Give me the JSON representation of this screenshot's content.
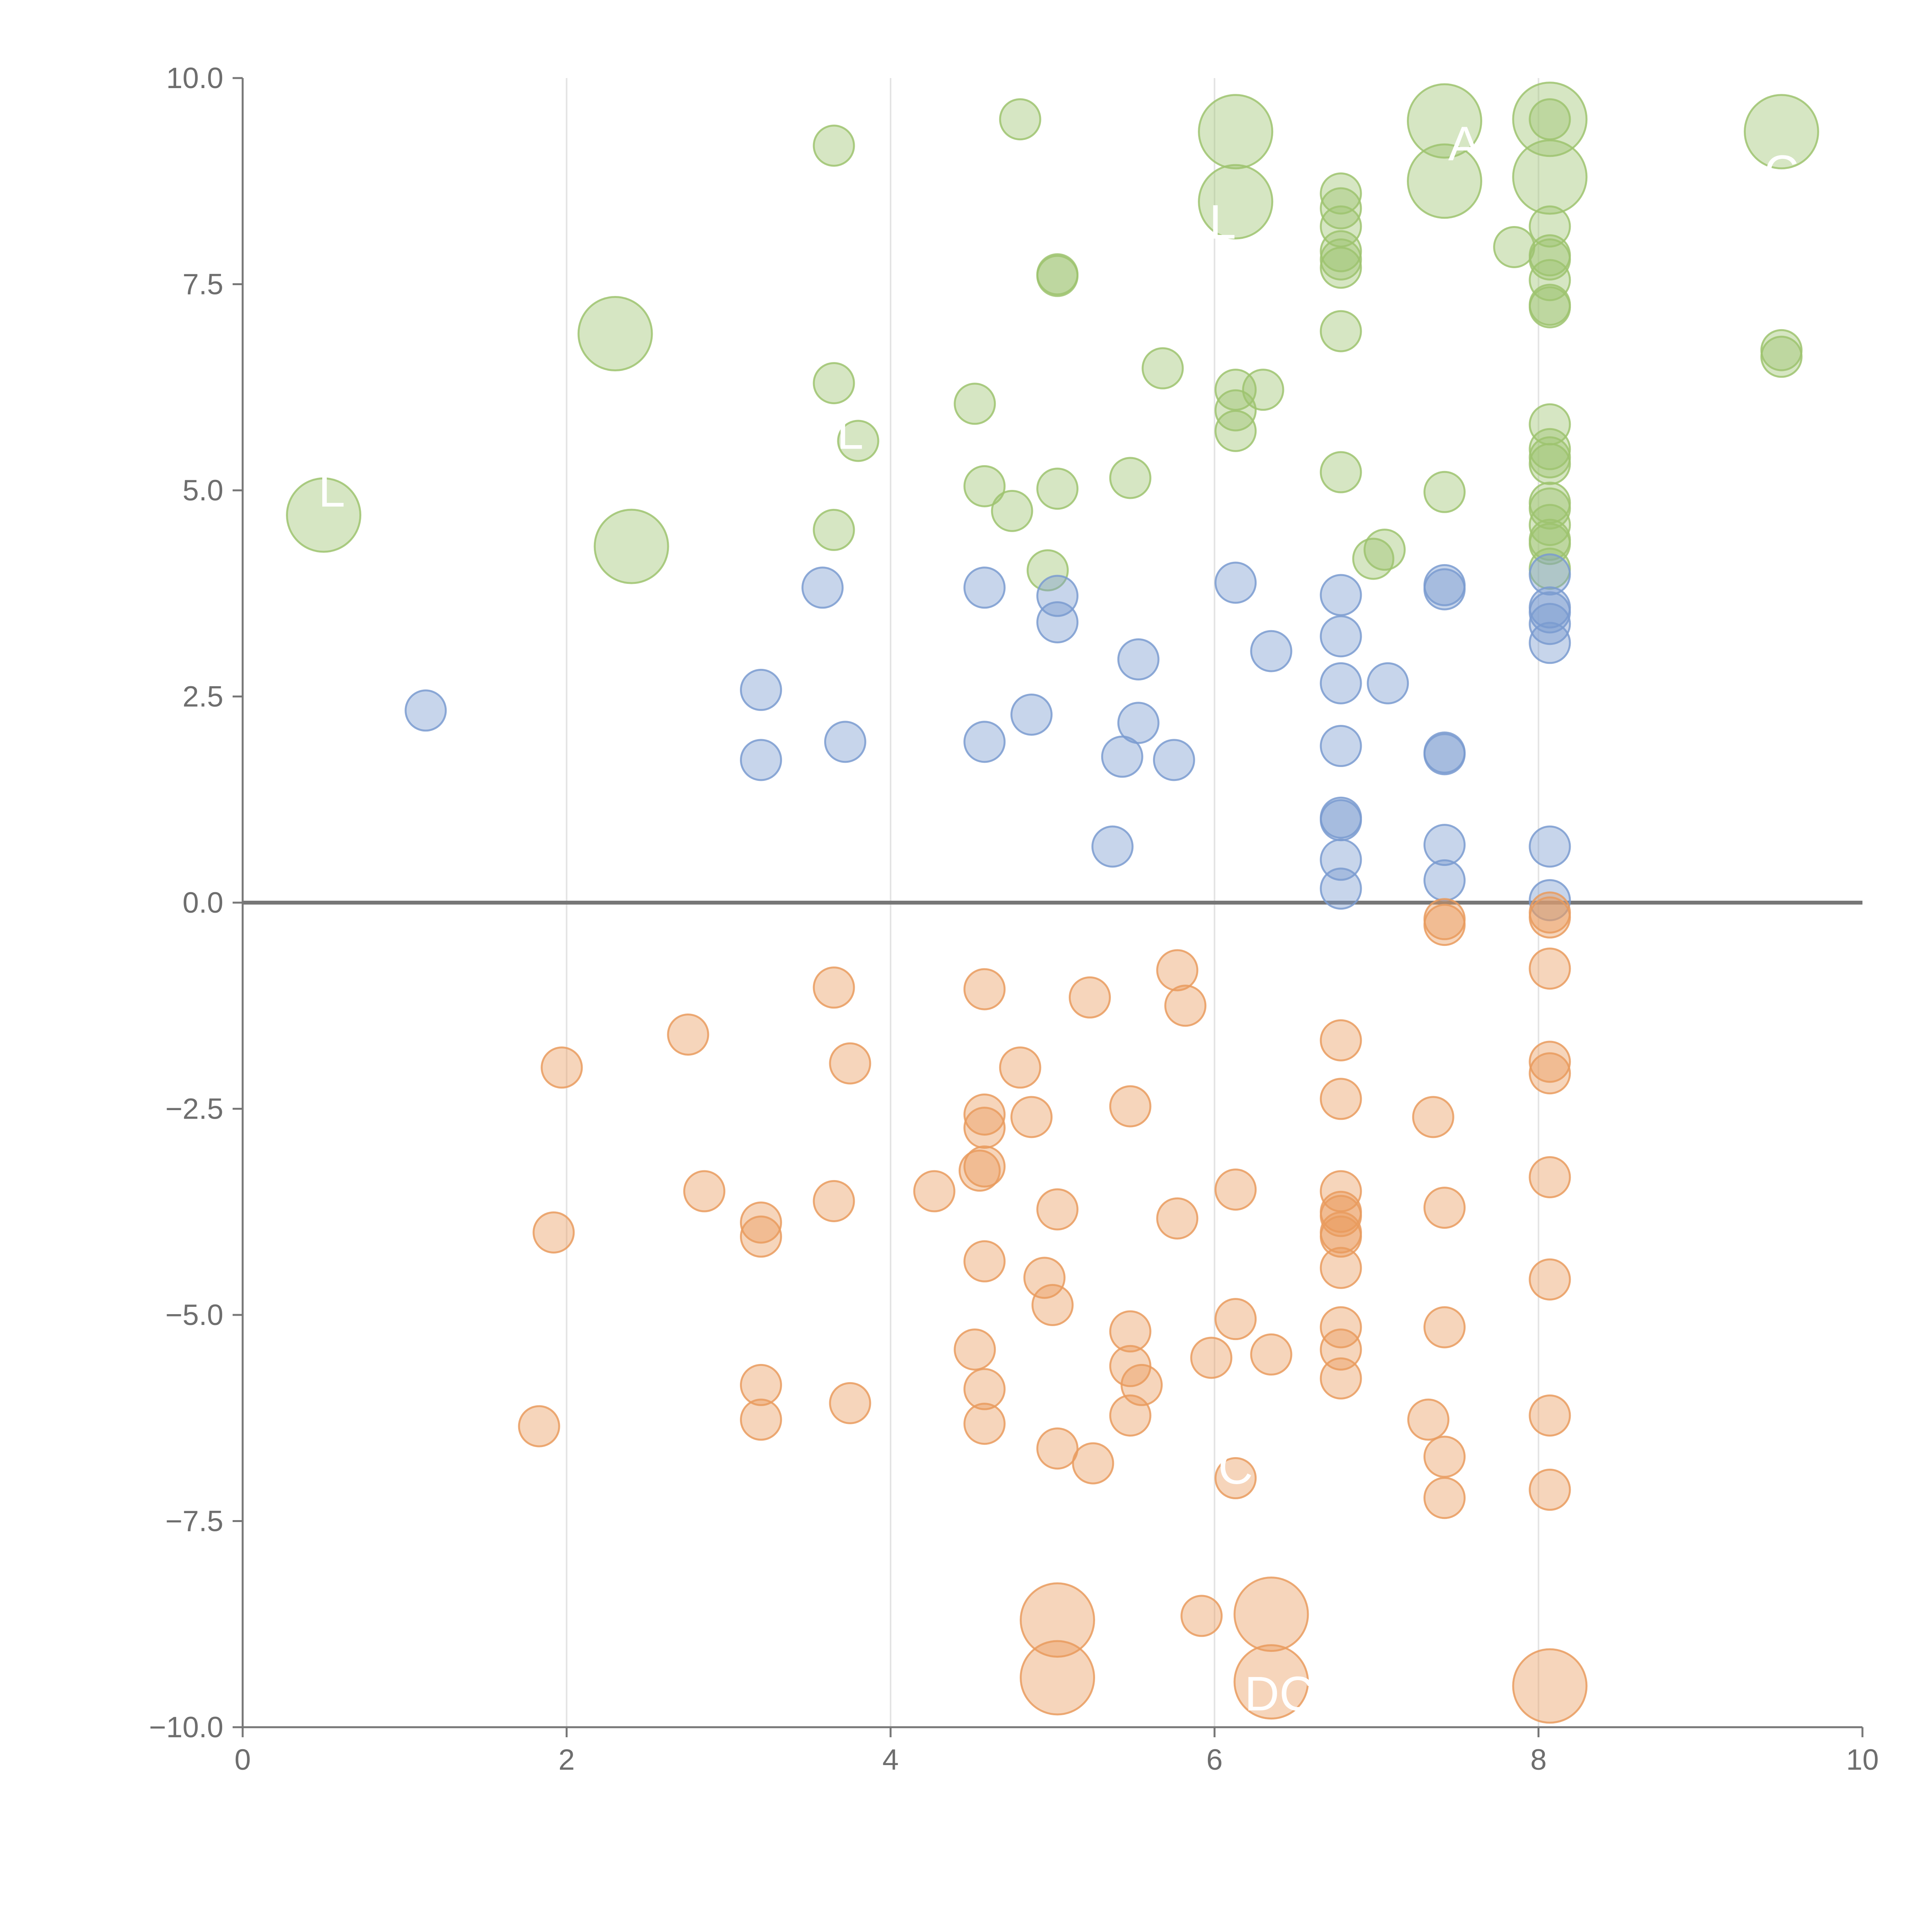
{
  "chart_data": {
    "type": "scatter",
    "title": "",
    "xlabel": "",
    "ylabel": "",
    "xlim": [
      0,
      10
    ],
    "ylim": [
      -10,
      10
    ],
    "x_ticks": [
      "0",
      "2",
      "4",
      "6",
      "8",
      "10"
    ],
    "y_ticks": [
      "−10.0",
      "−7.5",
      "−5.0",
      "−2.5",
      "0.0",
      "2.5",
      "5.0",
      "7.5",
      "10.0"
    ],
    "grid": "vertical",
    "reference_line_y": 0,
    "colors": {
      "green": "#9dc36f",
      "blue": "#7a9bd0",
      "orange": "#e99b5e",
      "axis": "#777777",
      "grid": "#e3e3e3"
    },
    "series": [
      {
        "name": "green",
        "color": "#9dc36f",
        "points": [
          {
            "x": 3.65,
            "y": 9.18,
            "s": 1
          },
          {
            "x": 4.8,
            "y": 9.5,
            "s": 1
          },
          {
            "x": 6.13,
            "y": 9.35,
            "s": 2
          },
          {
            "x": 6.13,
            "y": 8.5,
            "s": 2
          },
          {
            "x": 7.42,
            "y": 9.48,
            "s": 2
          },
          {
            "x": 7.42,
            "y": 8.75,
            "s": 2
          },
          {
            "x": 8.07,
            "y": 9.5,
            "s": 2
          },
          {
            "x": 8.07,
            "y": 8.8,
            "s": 2
          },
          {
            "x": 9.5,
            "y": 9.35,
            "s": 2
          },
          {
            "x": 8.07,
            "y": 9.5,
            "s": 1
          },
          {
            "x": 6.78,
            "y": 8.6,
            "s": 1
          },
          {
            "x": 6.78,
            "y": 8.42,
            "s": 1
          },
          {
            "x": 6.78,
            "y": 8.2,
            "s": 1
          },
          {
            "x": 6.78,
            "y": 7.9,
            "s": 1
          },
          {
            "x": 6.78,
            "y": 7.8,
            "s": 1
          },
          {
            "x": 6.78,
            "y": 7.7,
            "s": 1
          },
          {
            "x": 7.85,
            "y": 7.95,
            "s": 1
          },
          {
            "x": 8.07,
            "y": 8.2,
            "s": 1
          },
          {
            "x": 8.07,
            "y": 7.85,
            "s": 1
          },
          {
            "x": 8.07,
            "y": 7.8,
            "s": 1
          },
          {
            "x": 8.07,
            "y": 7.55,
            "s": 1
          },
          {
            "x": 8.07,
            "y": 7.25,
            "s": 1
          },
          {
            "x": 8.07,
            "y": 7.22,
            "s": 1
          },
          {
            "x": 5.03,
            "y": 7.62,
            "s": 1
          },
          {
            "x": 5.03,
            "y": 7.6,
            "s": 1
          },
          {
            "x": 2.3,
            "y": 6.9,
            "s": 2
          },
          {
            "x": 6.78,
            "y": 6.93,
            "s": 1
          },
          {
            "x": 9.5,
            "y": 6.7,
            "s": 1
          },
          {
            "x": 9.5,
            "y": 6.62,
            "s": 1
          },
          {
            "x": 3.65,
            "y": 6.3,
            "s": 1
          },
          {
            "x": 5.68,
            "y": 6.48,
            "s": 1
          },
          {
            "x": 4.52,
            "y": 6.05,
            "s": 1
          },
          {
            "x": 6.13,
            "y": 6.22,
            "s": 1
          },
          {
            "x": 6.3,
            "y": 6.22,
            "s": 1
          },
          {
            "x": 6.13,
            "y": 5.97,
            "s": 1
          },
          {
            "x": 6.13,
            "y": 5.72,
            "s": 1
          },
          {
            "x": 3.8,
            "y": 5.6,
            "s": 1
          },
          {
            "x": 8.07,
            "y": 5.8,
            "s": 1
          },
          {
            "x": 8.07,
            "y": 5.5,
            "s": 1
          },
          {
            "x": 8.07,
            "y": 5.4,
            "s": 1
          },
          {
            "x": 8.07,
            "y": 5.32,
            "s": 1
          },
          {
            "x": 6.78,
            "y": 5.22,
            "s": 1
          },
          {
            "x": 5.48,
            "y": 5.15,
            "s": 1
          },
          {
            "x": 4.58,
            "y": 5.05,
            "s": 1
          },
          {
            "x": 5.03,
            "y": 5.02,
            "s": 1
          },
          {
            "x": 7.42,
            "y": 4.98,
            "s": 1
          },
          {
            "x": 0.5,
            "y": 4.7,
            "s": 2
          },
          {
            "x": 4.75,
            "y": 4.75,
            "s": 1
          },
          {
            "x": 8.07,
            "y": 4.85,
            "s": 1
          },
          {
            "x": 8.07,
            "y": 4.78,
            "s": 1
          },
          {
            "x": 8.07,
            "y": 4.58,
            "s": 1
          },
          {
            "x": 8.07,
            "y": 4.4,
            "s": 1
          },
          {
            "x": 8.07,
            "y": 4.35,
            "s": 1
          },
          {
            "x": 3.65,
            "y": 4.52,
            "s": 1
          },
          {
            "x": 2.4,
            "y": 4.32,
            "s": 2
          },
          {
            "x": 7.05,
            "y": 4.28,
            "s": 1
          },
          {
            "x": 6.98,
            "y": 4.17,
            "s": 1
          },
          {
            "x": 4.97,
            "y": 4.03,
            "s": 1
          },
          {
            "x": 8.07,
            "y": 4.05,
            "s": 1
          }
        ]
      },
      {
        "name": "blue",
        "color": "#7a9bd0",
        "points": [
          {
            "x": 3.58,
            "y": 3.82,
            "s": 1
          },
          {
            "x": 4.58,
            "y": 3.82,
            "s": 1
          },
          {
            "x": 6.13,
            "y": 3.88,
            "s": 1
          },
          {
            "x": 7.42,
            "y": 3.85,
            "s": 1
          },
          {
            "x": 7.42,
            "y": 3.8,
            "s": 1
          },
          {
            "x": 5.03,
            "y": 3.72,
            "s": 1
          },
          {
            "x": 6.78,
            "y": 3.73,
            "s": 1
          },
          {
            "x": 8.07,
            "y": 3.98,
            "s": 1
          },
          {
            "x": 8.07,
            "y": 3.58,
            "s": 1
          },
          {
            "x": 8.07,
            "y": 3.52,
            "s": 1
          },
          {
            "x": 8.07,
            "y": 3.38,
            "s": 1
          },
          {
            "x": 8.07,
            "y": 3.15,
            "s": 1
          },
          {
            "x": 5.03,
            "y": 3.4,
            "s": 1
          },
          {
            "x": 6.78,
            "y": 3.23,
            "s": 1
          },
          {
            "x": 6.35,
            "y": 3.05,
            "s": 1
          },
          {
            "x": 5.53,
            "y": 2.95,
            "s": 1
          },
          {
            "x": 3.2,
            "y": 2.58,
            "s": 1
          },
          {
            "x": 6.78,
            "y": 2.66,
            "s": 1
          },
          {
            "x": 7.07,
            "y": 2.66,
            "s": 1
          },
          {
            "x": 1.13,
            "y": 2.33,
            "s": 1
          },
          {
            "x": 4.87,
            "y": 2.28,
            "s": 1
          },
          {
            "x": 5.53,
            "y": 2.18,
            "s": 1
          },
          {
            "x": 3.72,
            "y": 1.95,
            "s": 1
          },
          {
            "x": 4.58,
            "y": 1.95,
            "s": 1
          },
          {
            "x": 6.78,
            "y": 1.9,
            "s": 1
          },
          {
            "x": 7.42,
            "y": 1.82,
            "s": 1
          },
          {
            "x": 7.42,
            "y": 1.8,
            "s": 1
          },
          {
            "x": 3.2,
            "y": 1.73,
            "s": 1
          },
          {
            "x": 5.43,
            "y": 1.77,
            "s": 1
          },
          {
            "x": 5.75,
            "y": 1.73,
            "s": 1
          },
          {
            "x": 6.78,
            "y": 1.03,
            "s": 1
          },
          {
            "x": 6.78,
            "y": 1.0,
            "s": 1
          },
          {
            "x": 5.37,
            "y": 0.68,
            "s": 1
          },
          {
            "x": 7.42,
            "y": 0.7,
            "s": 1
          },
          {
            "x": 8.07,
            "y": 0.68,
            "s": 1
          },
          {
            "x": 6.78,
            "y": 0.52,
            "s": 1
          },
          {
            "x": 7.42,
            "y": 0.27,
            "s": 1
          },
          {
            "x": 6.78,
            "y": 0.17,
            "s": 1
          },
          {
            "x": 8.07,
            "y": 0.03,
            "s": 1
          }
        ]
      },
      {
        "name": "orange",
        "color": "#e99b5e",
        "points": [
          {
            "x": 7.42,
            "y": -0.2,
            "s": 1
          },
          {
            "x": 7.42,
            "y": -0.27,
            "s": 1
          },
          {
            "x": 8.07,
            "y": -0.12,
            "s": 1
          },
          {
            "x": 8.07,
            "y": -0.18,
            "s": 1
          },
          {
            "x": 8.07,
            "y": -0.8,
            "s": 1
          },
          {
            "x": 5.77,
            "y": -0.82,
            "s": 1
          },
          {
            "x": 3.65,
            "y": -1.03,
            "s": 1
          },
          {
            "x": 4.58,
            "y": -1.05,
            "s": 1
          },
          {
            "x": 5.23,
            "y": -1.15,
            "s": 1
          },
          {
            "x": 5.82,
            "y": -1.25,
            "s": 1
          },
          {
            "x": 2.75,
            "y": -1.6,
            "s": 1
          },
          {
            "x": 6.78,
            "y": -1.67,
            "s": 1
          },
          {
            "x": 3.75,
            "y": -1.95,
            "s": 1
          },
          {
            "x": 1.97,
            "y": -2.0,
            "s": 1
          },
          {
            "x": 4.8,
            "y": -2.0,
            "s": 1
          },
          {
            "x": 8.07,
            "y": -1.93,
            "s": 1
          },
          {
            "x": 8.07,
            "y": -2.07,
            "s": 1
          },
          {
            "x": 6.78,
            "y": -2.38,
            "s": 1
          },
          {
            "x": 5.48,
            "y": -2.47,
            "s": 1
          },
          {
            "x": 4.58,
            "y": -2.57,
            "s": 1
          },
          {
            "x": 4.87,
            "y": -2.6,
            "s": 1
          },
          {
            "x": 7.35,
            "y": -2.6,
            "s": 1
          },
          {
            "x": 4.58,
            "y": -2.73,
            "s": 1
          },
          {
            "x": 4.58,
            "y": -3.2,
            "s": 1
          },
          {
            "x": 4.55,
            "y": -3.25,
            "s": 1
          },
          {
            "x": 8.07,
            "y": -3.33,
            "s": 1
          },
          {
            "x": 2.85,
            "y": -3.5,
            "s": 1
          },
          {
            "x": 4.27,
            "y": -3.5,
            "s": 1
          },
          {
            "x": 6.13,
            "y": -3.48,
            "s": 1
          },
          {
            "x": 6.78,
            "y": -3.5,
            "s": 1
          },
          {
            "x": 3.65,
            "y": -3.62,
            "s": 1
          },
          {
            "x": 5.03,
            "y": -3.72,
            "s": 1
          },
          {
            "x": 7.42,
            "y": -3.7,
            "s": 1
          },
          {
            "x": 6.78,
            "y": -3.75,
            "s": 1
          },
          {
            "x": 6.78,
            "y": -3.8,
            "s": 1
          },
          {
            "x": 5.77,
            "y": -3.83,
            "s": 1
          },
          {
            "x": 3.2,
            "y": -3.88,
            "s": 1
          },
          {
            "x": 1.92,
            "y": -4.0,
            "s": 1
          },
          {
            "x": 3.2,
            "y": -4.05,
            "s": 1
          },
          {
            "x": 6.78,
            "y": -4.0,
            "s": 1
          },
          {
            "x": 6.78,
            "y": -4.05,
            "s": 1
          },
          {
            "x": 4.58,
            "y": -4.35,
            "s": 1
          },
          {
            "x": 6.78,
            "y": -4.43,
            "s": 1
          },
          {
            "x": 4.95,
            "y": -4.55,
            "s": 1
          },
          {
            "x": 8.07,
            "y": -4.57,
            "s": 1
          },
          {
            "x": 5.0,
            "y": -4.88,
            "s": 1
          },
          {
            "x": 6.13,
            "y": -5.05,
            "s": 1
          },
          {
            "x": 6.78,
            "y": -5.15,
            "s": 1
          },
          {
            "x": 5.48,
            "y": -5.2,
            "s": 1
          },
          {
            "x": 7.42,
            "y": -5.15,
            "s": 1
          },
          {
            "x": 4.52,
            "y": -5.42,
            "s": 1
          },
          {
            "x": 6.78,
            "y": -5.42,
            "s": 1
          },
          {
            "x": 5.98,
            "y": -5.52,
            "s": 1
          },
          {
            "x": 6.35,
            "y": -5.48,
            "s": 1
          },
          {
            "x": 5.48,
            "y": -5.62,
            "s": 1
          },
          {
            "x": 6.78,
            "y": -5.77,
            "s": 1
          },
          {
            "x": 3.2,
            "y": -5.85,
            "s": 1
          },
          {
            "x": 5.55,
            "y": -5.85,
            "s": 1
          },
          {
            "x": 4.58,
            "y": -5.9,
            "s": 1
          },
          {
            "x": 3.75,
            "y": -6.07,
            "s": 1
          },
          {
            "x": 3.2,
            "y": -6.27,
            "s": 1
          },
          {
            "x": 1.83,
            "y": -6.35,
            "s": 1
          },
          {
            "x": 4.58,
            "y": -6.32,
            "s": 1
          },
          {
            "x": 5.48,
            "y": -6.22,
            "s": 1
          },
          {
            "x": 7.32,
            "y": -6.27,
            "s": 1
          },
          {
            "x": 8.07,
            "y": -6.22,
            "s": 1
          },
          {
            "x": 5.03,
            "y": -6.62,
            "s": 1
          },
          {
            "x": 7.42,
            "y": -6.72,
            "s": 1
          },
          {
            "x": 5.25,
            "y": -6.8,
            "s": 1
          },
          {
            "x": 6.13,
            "y": -6.98,
            "s": 1
          },
          {
            "x": 8.07,
            "y": -7.12,
            "s": 1
          },
          {
            "x": 7.42,
            "y": -7.22,
            "s": 1
          },
          {
            "x": 5.03,
            "y": -8.7,
            "s": 2
          },
          {
            "x": 5.92,
            "y": -8.65,
            "s": 1
          },
          {
            "x": 6.35,
            "y": -8.63,
            "s": 2
          },
          {
            "x": 5.03,
            "y": -9.4,
            "s": 2
          },
          {
            "x": 6.35,
            "y": -9.45,
            "s": 2
          },
          {
            "x": 8.07,
            "y": -9.5,
            "s": 2
          }
        ]
      }
    ],
    "point_labels": [
      {
        "text": "AR",
        "x": 7.65,
        "y": 9.2
      },
      {
        "text": "DC",
        "x": 6.4,
        "y": -9.6
      },
      {
        "text": "L",
        "x": 0.55,
        "y": 5.0
      },
      {
        "text": "L",
        "x": 3.75,
        "y": 5.7
      },
      {
        "text": "L",
        "x": 6.05,
        "y": 8.25
      },
      {
        "text": "C",
        "x": 6.13,
        "y": -6.85
      },
      {
        "text": "C",
        "x": 9.5,
        "y": 8.85
      }
    ]
  }
}
